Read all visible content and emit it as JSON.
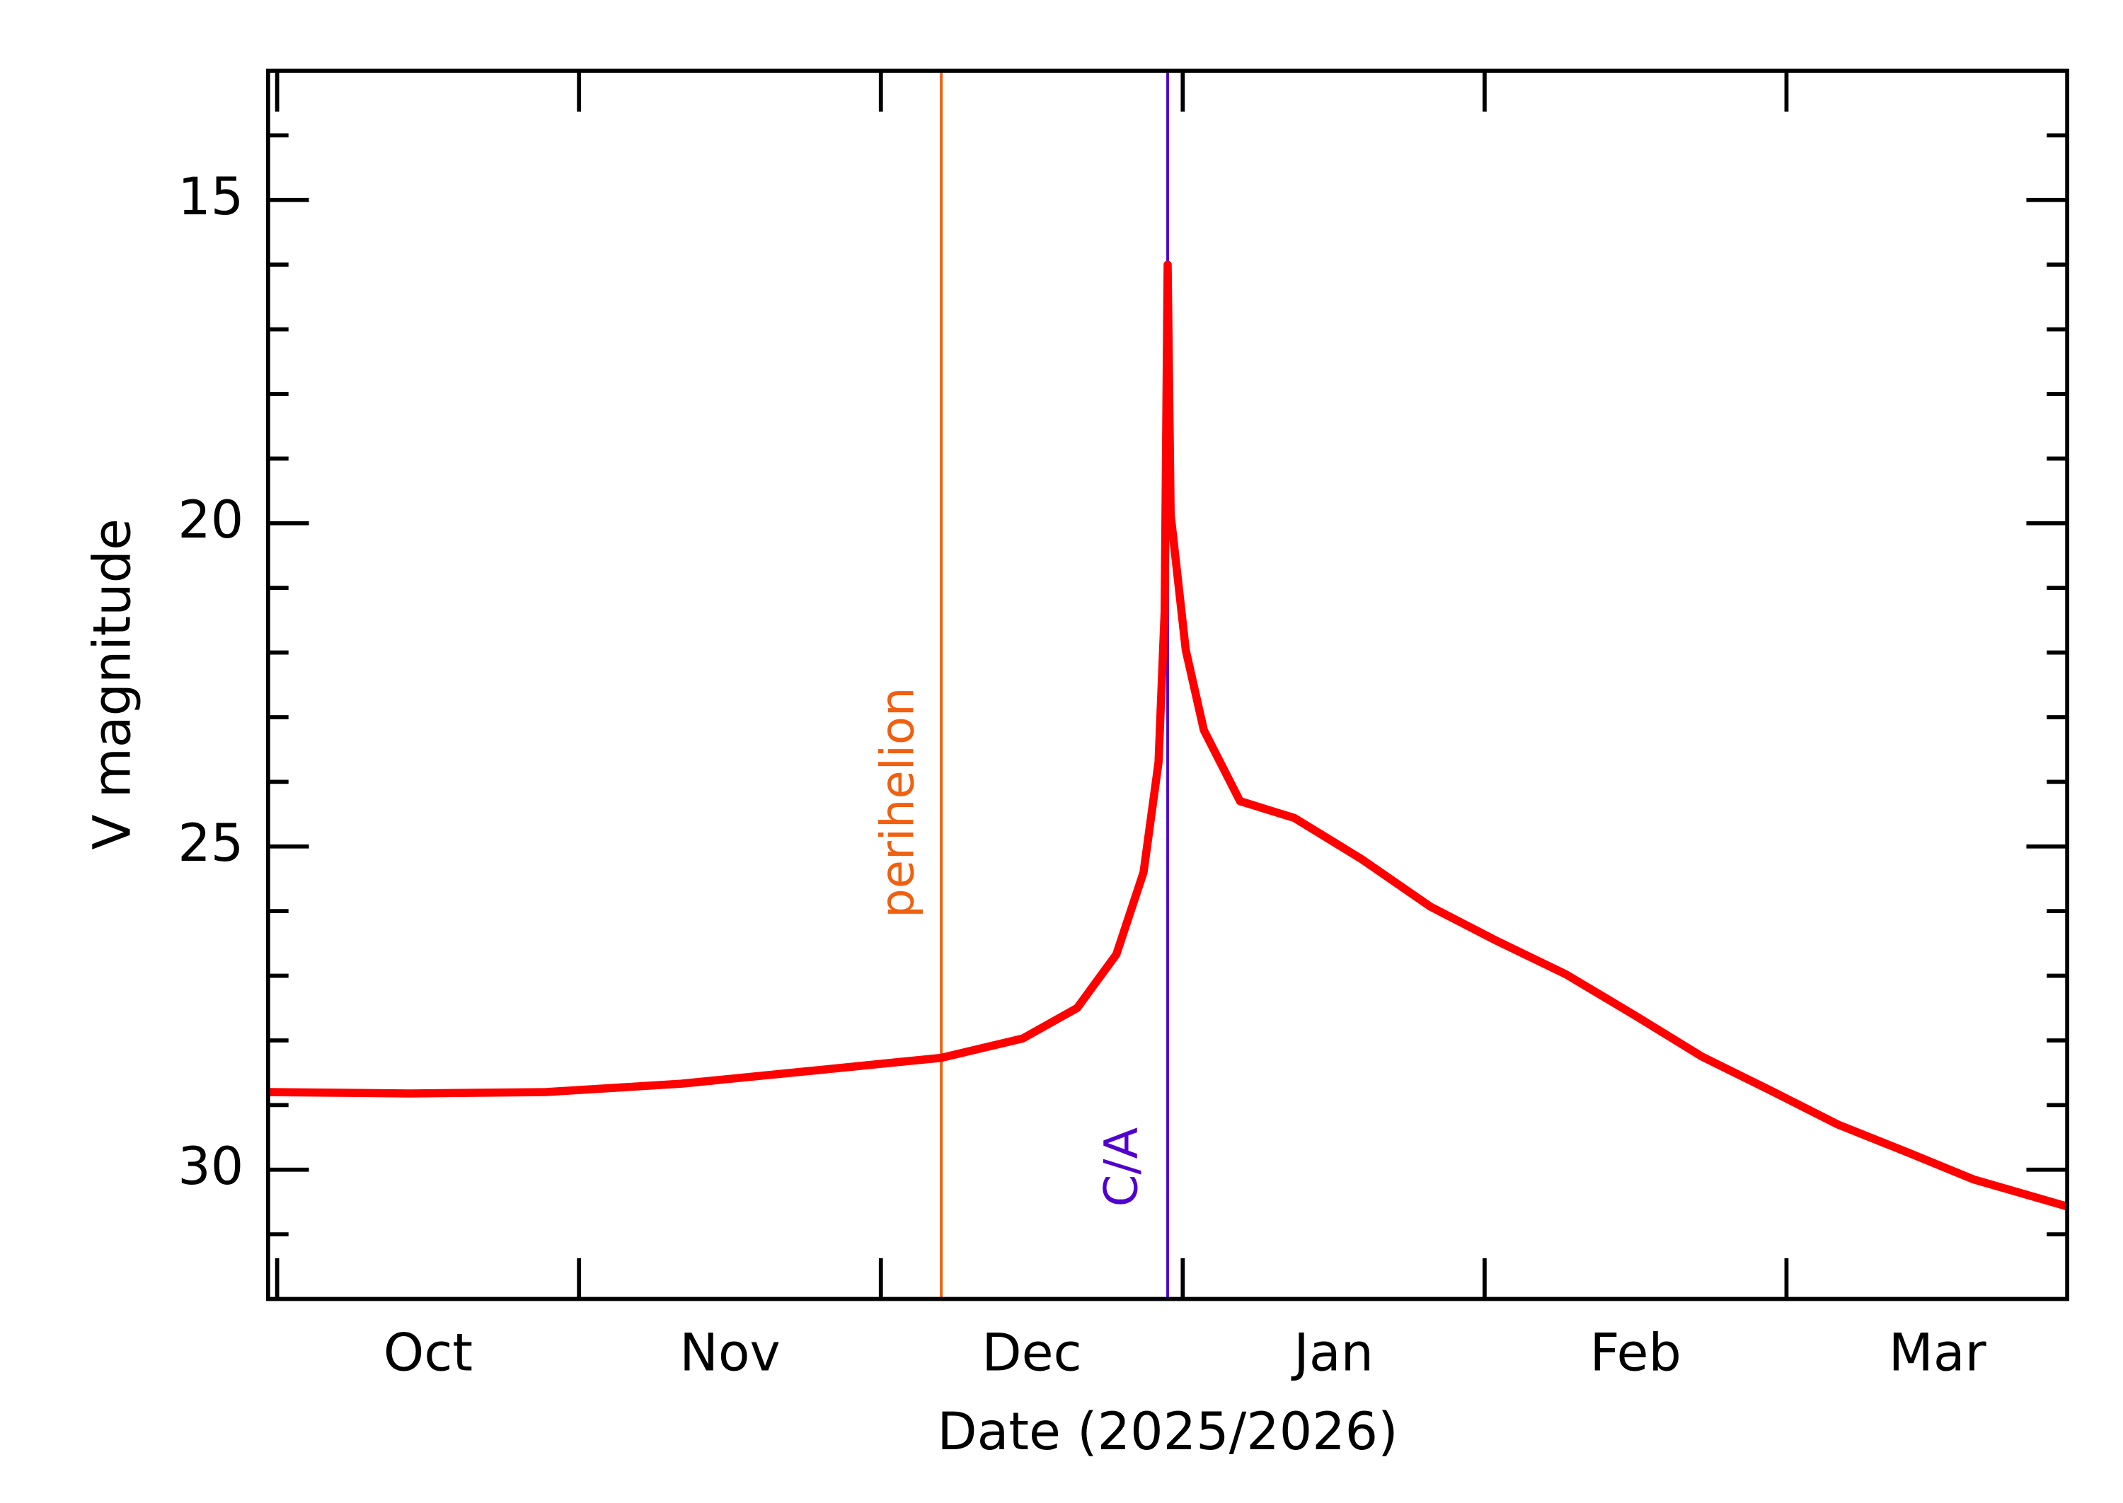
{
  "chart_data": {
    "type": "line",
    "x_label": "Date (2025/2026)",
    "y_label": "V magnitude",
    "x": [
      -0.03,
      0.44,
      0.89,
      1.34,
      1.79,
      2.2,
      2.47,
      2.65,
      2.78,
      2.87,
      2.92,
      2.94,
      2.95,
      2.96,
      3.01,
      3.07,
      3.19,
      3.37,
      3.59,
      3.82,
      4.04,
      4.27,
      4.5,
      4.72,
      4.95,
      5.17,
      5.4,
      5.62,
      5.93
    ],
    "series": [
      {
        "name": "V magnitude",
        "color": "#ff0000",
        "values": [
          28.8,
          28.82,
          28.8,
          28.67,
          28.46,
          28.27,
          27.97,
          27.5,
          26.67,
          25.4,
          23.7,
          21.37,
          16.0,
          19.86,
          21.96,
          23.2,
          24.3,
          24.56,
          25.19,
          25.93,
          26.46,
          26.98,
          27.62,
          28.25,
          28.78,
          29.3,
          29.73,
          30.15,
          30.57
        ]
      }
    ],
    "xlim": [
      -0.03,
      5.93
    ],
    "xticks": [
      {
        "value": 0.5,
        "label": "Oct"
      },
      {
        "value": 1.5,
        "label": "Nov"
      },
      {
        "value": 2.5,
        "label": "Dec"
      },
      {
        "value": 3.5,
        "label": "Jan"
      },
      {
        "value": 4.5,
        "label": "Feb"
      },
      {
        "value": 5.5,
        "label": "Mar"
      }
    ],
    "xtick_marks": [
      0,
      1,
      2,
      3,
      4,
      5
    ],
    "ylim": [
      32,
      13
    ],
    "yticks": [
      15,
      20,
      25,
      30
    ],
    "yminorticks": [
      14,
      16,
      17,
      18,
      19,
      21,
      22,
      23,
      24,
      26,
      27,
      28,
      29,
      31
    ],
    "vlines": [
      {
        "x": 2.2,
        "label": "perihelion",
        "color": "#f06010"
      },
      {
        "x": 2.95,
        "label": "C/A",
        "color": "#5000d0"
      }
    ]
  }
}
